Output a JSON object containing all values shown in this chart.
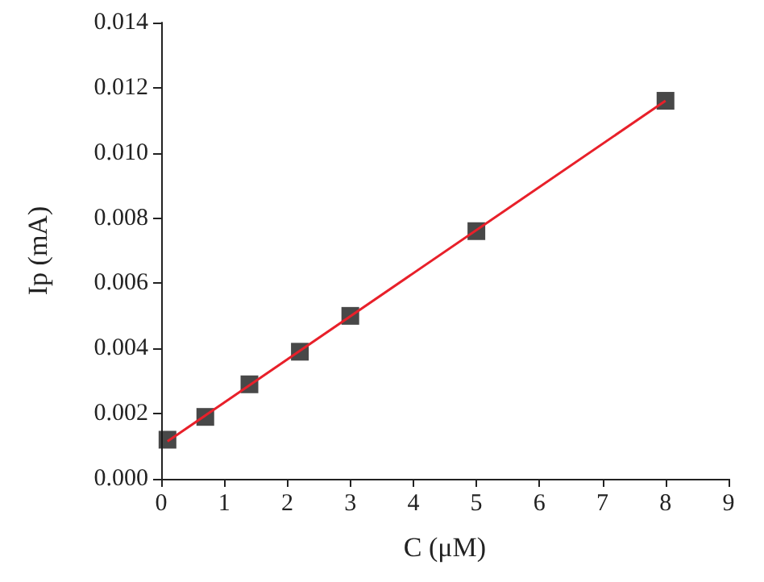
{
  "chart_data": {
    "type": "scatter",
    "xlabel": "C (μM)",
    "ylabel": "Ip (mA)",
    "series": [
      {
        "color": "#1a1a1a",
        "marker": "square",
        "x": [
          0.1,
          0.7,
          1.4,
          2.2,
          3,
          5,
          8
        ],
        "values": [
          0.0012,
          0.0019,
          0.0029,
          0.0039,
          0.005,
          0.0076,
          0.0116
        ]
      },
      {
        "type": "line",
        "color": "#e8202a",
        "marker": "none",
        "line_style": "solid",
        "x": [
          0.1,
          8
        ],
        "values": [
          0.00115,
          0.0116
        ]
      }
    ],
    "xlim": [
      0,
      9
    ],
    "xticks": [
      0,
      1,
      2,
      3,
      4,
      5,
      6,
      7,
      8,
      9
    ],
    "ylim": [
      0,
      0.014
    ],
    "yticks": [
      {
        "value": 0,
        "label": "0.000"
      },
      {
        "value": 0.002,
        "label": "0.002"
      },
      {
        "value": 0.004,
        "label": "0.004"
      },
      {
        "value": 0.006,
        "label": "0.006"
      },
      {
        "value": 0.008,
        "label": "0.008"
      },
      {
        "value": 0.01,
        "label": "0.010"
      },
      {
        "value": 0.012,
        "label": "0.012"
      },
      {
        "value": 0.014,
        "label": "0.014"
      }
    ],
    "grid": false
  }
}
